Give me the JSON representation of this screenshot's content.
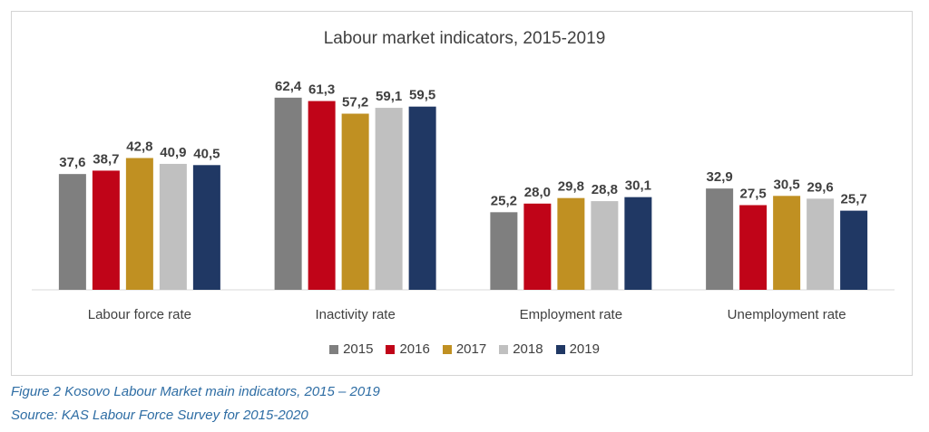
{
  "chart_data": {
    "type": "bar",
    "title": "Labour market indicators, 2015-2019",
    "categories": [
      "Labour force rate",
      "Inactivity rate",
      "Employment rate",
      "Unemployment  rate"
    ],
    "series": [
      {
        "name": "2015",
        "color": "#7f7f7f",
        "values": [
          37.6,
          62.4,
          25.2,
          32.9
        ],
        "labels": [
          "37,6",
          "62,4",
          "25,2",
          "32,9"
        ]
      },
      {
        "name": "2016",
        "color": "#c00418",
        "values": [
          38.7,
          61.3,
          28.0,
          27.5
        ],
        "labels": [
          "38,7",
          "61,3",
          "28,0",
          "27,5"
        ]
      },
      {
        "name": "2017",
        "color": "#c09022",
        "values": [
          42.8,
          57.2,
          29.8,
          30.5
        ],
        "labels": [
          "42,8",
          "57,2",
          "29,8",
          "30,5"
        ]
      },
      {
        "name": "2018",
        "color": "#c0c0c0",
        "values": [
          40.9,
          59.1,
          28.8,
          29.6
        ],
        "labels": [
          "40,9",
          "59,1",
          "28,8",
          "29,6"
        ]
      },
      {
        "name": "2019",
        "color": "#203864",
        "values": [
          40.5,
          59.5,
          30.1,
          25.7
        ],
        "labels": [
          "40,5",
          "59,5",
          "30,1",
          "25,7"
        ]
      }
    ],
    "ylim": [
      0,
      70
    ],
    "grid": false,
    "legend": "bottom",
    "xlabel": "",
    "ylabel": ""
  },
  "caption": {
    "figure": "Figure 2 Kosovo  Labour Market main indicators, 2015 – 2019",
    "source": "Source: KAS Labour Force Survey for 2015-2020"
  }
}
